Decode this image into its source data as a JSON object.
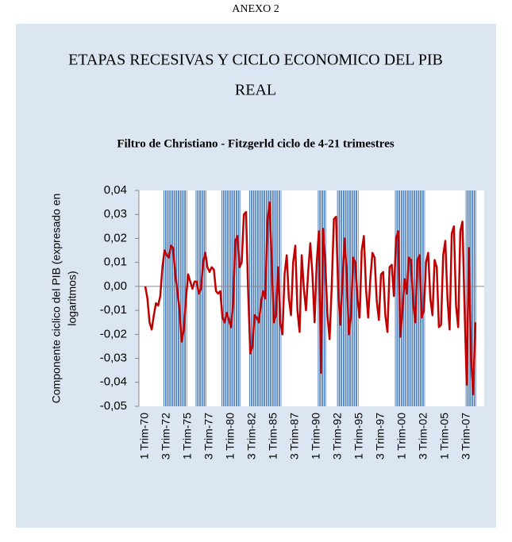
{
  "header": "ANEXO 2",
  "heading": [
    "ETAPAS RECESIVAS Y CICLO ECONOMICO DEL PIB",
    "REAL"
  ],
  "chart_data": {
    "type": "line",
    "title": "Filtro de Christiano - Fitzgerld ciclo de 4-21 trimestres",
    "y_label": [
      "Componente ciclico del PIB (expresado en",
      "logaritmos)"
    ],
    "categories": [
      "1 Trim-70",
      null,
      null,
      null,
      null,
      null,
      null,
      null,
      null,
      null,
      "3 Trim-72",
      null,
      null,
      null,
      null,
      null,
      null,
      null,
      null,
      null,
      "1 Trim-75",
      null,
      null,
      null,
      null,
      null,
      null,
      null,
      null,
      null,
      "3 Trim-77",
      null,
      null,
      null,
      null,
      null,
      null,
      null,
      null,
      null,
      "1 Trim-80",
      null,
      null,
      null,
      null,
      null,
      null,
      null,
      null,
      null,
      "3 Trim-82",
      null,
      null,
      null,
      null,
      null,
      null,
      null,
      null,
      null,
      "1 Trim-85",
      null,
      null,
      null,
      null,
      null,
      null,
      null,
      null,
      null,
      "3 Trim-87",
      null,
      null,
      null,
      null,
      null,
      null,
      null,
      null,
      null,
      "1 Trim-90",
      null,
      null,
      null,
      null,
      null,
      null,
      null,
      null,
      null,
      "3 Trim-92",
      null,
      null,
      null,
      null,
      null,
      null,
      null,
      null,
      null,
      "1 Trim-95",
      null,
      null,
      null,
      null,
      null,
      null,
      null,
      null,
      null,
      "3 Trim-97",
      null,
      null,
      null,
      null,
      null,
      null,
      null,
      null,
      null,
      "1 Trim-00",
      null,
      null,
      null,
      null,
      null,
      null,
      null,
      null,
      null,
      "3 Trim-02",
      null,
      null,
      null,
      null,
      null,
      null,
      null,
      null,
      null,
      "1 Trim-05",
      null,
      null,
      null,
      null,
      null,
      null,
      null,
      null,
      null,
      "3 Trim-07",
      null,
      null,
      null,
      null
    ],
    "values": [
      0.0,
      -0.005,
      -0.015,
      -0.018,
      -0.012,
      -0.007,
      -0.008,
      -0.004,
      0.008,
      0.015,
      0.013,
      0.012,
      0.017,
      0.016,
      0.005,
      -0.002,
      -0.01,
      -0.023,
      -0.018,
      -0.005,
      0.005,
      0.002,
      -0.001,
      0.002,
      0.002,
      -0.003,
      -0.001,
      0.01,
      0.014,
      0.008,
      0.006,
      0.008,
      0.007,
      -0.002,
      -0.003,
      -0.002,
      -0.013,
      -0.015,
      -0.011,
      -0.014,
      -0.017,
      -0.007,
      0.019,
      0.021,
      0.008,
      0.01,
      0.03,
      0.031,
      -0.002,
      -0.028,
      -0.025,
      -0.012,
      -0.013,
      -0.015,
      -0.007,
      -0.002,
      -0.005,
      0.027,
      0.035,
      0.01,
      -0.015,
      -0.012,
      0.008,
      -0.015,
      -0.02,
      0.005,
      0.013,
      -0.005,
      -0.012,
      0.01,
      0.017,
      -0.01,
      -0.019,
      0.013,
      -0.001,
      -0.01,
      0.006,
      0.018,
      0.005,
      -0.015,
      0.01,
      0.023,
      -0.036,
      0.024,
      0.01,
      -0.012,
      -0.022,
      0.0,
      0.028,
      0.029,
      -0.001,
      -0.016,
      0.002,
      0.02,
      0.005,
      -0.02,
      -0.012,
      0.012,
      0.01,
      -0.005,
      -0.013,
      0.015,
      0.021,
      -0.001,
      -0.013,
      0.003,
      0.014,
      0.012,
      -0.006,
      -0.014,
      0.005,
      0.006,
      -0.012,
      -0.019,
      0.008,
      0.009,
      -0.004,
      0.02,
      0.023,
      -0.021,
      -0.01,
      0.003,
      -0.003,
      0.012,
      0.011,
      -0.007,
      -0.015,
      0.011,
      0.013,
      -0.013,
      -0.01,
      0.01,
      0.014,
      -0.005,
      -0.012,
      0.011,
      0.008,
      -0.017,
      -0.016,
      0.013,
      0.019,
      -0.005,
      -0.018,
      0.022,
      0.025,
      -0.008,
      -0.017,
      0.023,
      0.027,
      -0.01,
      -0.041,
      0.016,
      -0.03,
      -0.045,
      -0.015
    ],
    "color": "#c00000",
    "recession_bands": [
      [
        9,
        19
      ],
      [
        24,
        28
      ],
      [
        36,
        44
      ],
      [
        49,
        63
      ],
      [
        81,
        84
      ],
      [
        90,
        99
      ],
      [
        117,
        130
      ],
      [
        150,
        154
      ]
    ],
    "band_color": "#4f81bd",
    "ylim": [
      -0.05,
      0.04
    ],
    "yticks": [
      {
        "value": -0.05,
        "label": "-0,05"
      },
      {
        "value": -0.04,
        "label": "-0,04"
      },
      {
        "value": -0.03,
        "label": "-0,03"
      },
      {
        "value": -0.02,
        "label": "-0,02"
      },
      {
        "value": -0.01,
        "label": "-0,01"
      },
      {
        "value": 0,
        "label": "0,00"
      },
      {
        "value": 0.01,
        "label": "0,01"
      },
      {
        "value": 0.02,
        "label": "0,02"
      },
      {
        "value": 0.03,
        "label": "0,03"
      },
      {
        "value": 0.04,
        "label": "0,04"
      }
    ],
    "zero_line": true
  }
}
